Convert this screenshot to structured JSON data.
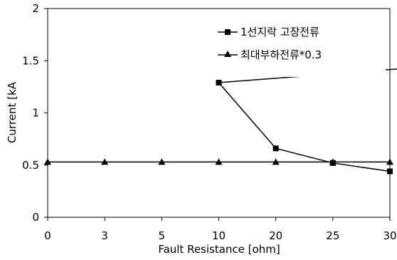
{
  "chart_data": {
    "type": "line",
    "title": "",
    "xlabel": "Fault Resistance [ohm]",
    "ylabel": "Current [kA",
    "categories": [
      "0",
      "3",
      "5",
      "10",
      "20",
      "25",
      "30"
    ],
    "ylim": [
      0,
      2
    ],
    "yticks": [
      "0",
      "0.5",
      "1",
      "1.5",
      "2"
    ],
    "grid": false,
    "legend_position": "top-right",
    "series": [
      {
        "name": "1선지락 고장전류",
        "marker": "square",
        "color": "#000000",
        "values": [
          null,
          null,
          null,
          1.29,
          0.66,
          0.52,
          0.44
        ],
        "entry_from_above": {
          "from_y": 2.0,
          "to_y": 1.78,
          "from_x": 7.4,
          "to_x": 8.0
        }
      },
      {
        "name": "최대부하전류*0.3",
        "marker": "triangle",
        "color": "#000000",
        "values": [
          0.53,
          0.53,
          0.53,
          0.53,
          0.53,
          0.53,
          0.53
        ]
      }
    ]
  }
}
